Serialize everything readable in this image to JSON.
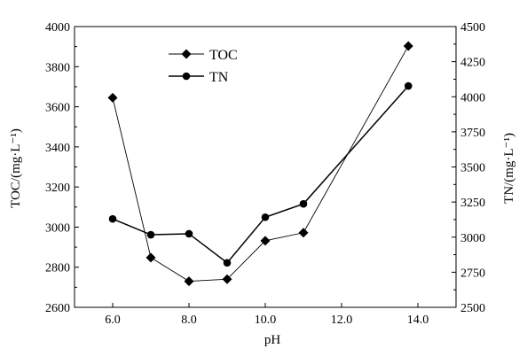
{
  "chart_data": {
    "type": "line",
    "xlabel": "pH",
    "ylabel_left": "TOC/(mg·L⁻¹)",
    "ylabel_right": "TN/(mg·L⁻¹)",
    "x_ticks": [
      "6.0",
      "8.0",
      "10.0",
      "12.0",
      "14.0"
    ],
    "x_tick_values": [
      6,
      8,
      10,
      12,
      14
    ],
    "y_left_ticks": [
      "2600",
      "2800",
      "3000",
      "3200",
      "3400",
      "3600",
      "3800",
      "4000"
    ],
    "y_left_tick_values": [
      2600,
      2800,
      3000,
      3200,
      3400,
      3600,
      3800,
      4000
    ],
    "y_right_ticks": [
      "2500",
      "2750",
      "3000",
      "3250",
      "3500",
      "3750",
      "4000",
      "4250",
      "4500"
    ],
    "y_right_tick_values": [
      2500,
      2750,
      3000,
      3250,
      3500,
      3750,
      4000,
      4250,
      4500
    ],
    "xlim": [
      5,
      15
    ],
    "ylim_left": [
      2600,
      4000
    ],
    "ylim_right": [
      2500,
      4500
    ],
    "grid": false,
    "legend_position": "top-left",
    "series": [
      {
        "name": "TOC",
        "axis": "left",
        "marker": "diamond",
        "x": [
          6,
          7,
          8,
          9,
          10,
          11,
          13.75
        ],
        "values": [
          3645,
          2848,
          2730,
          2740,
          2932,
          2972,
          3903
        ]
      },
      {
        "name": "TN",
        "axis": "right",
        "marker": "circle",
        "x": [
          6,
          7,
          8,
          9,
          10,
          11,
          13.75
        ],
        "values": [
          3130,
          3017,
          3024,
          2817,
          3142,
          3237,
          4077
        ]
      }
    ]
  }
}
